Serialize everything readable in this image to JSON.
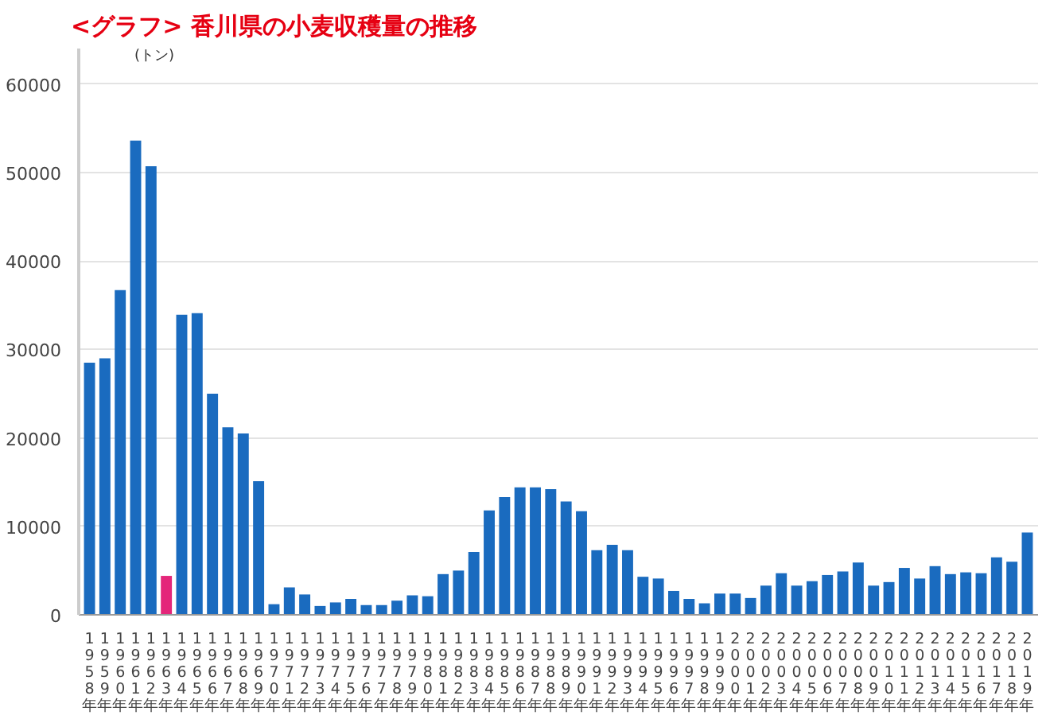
{
  "chart_data": {
    "type": "bar",
    "title": "<グラフ> 香川県の小麦収穫量の推移",
    "annotations": [
      "(トン)"
    ],
    "categories": [
      "1958年",
      "1959年",
      "1960年",
      "1961年",
      "1962年",
      "1963年",
      "1964年",
      "1965年",
      "1966年",
      "1967年",
      "1968年",
      "1969年",
      "1970年",
      "1971年",
      "1972年",
      "1973年",
      "1974年",
      "1975年",
      "1976年",
      "1977年",
      "1978年",
      "1979年",
      "1980年",
      "1981年",
      "1982年",
      "1983年",
      "1984年",
      "1985年",
      "1986年",
      "1987年",
      "1988年",
      "1989年",
      "1990年",
      "1991年",
      "1992年",
      "1993年",
      "1994年",
      "1995年",
      "1996年",
      "1997年",
      "1998年",
      "1999年",
      "2000年",
      "2001年",
      "2002年",
      "2003年",
      "2004年",
      "2005年",
      "2006年",
      "2007年",
      "2008年",
      "2009年",
      "2010年",
      "2011年",
      "2012年",
      "2013年",
      "2014年",
      "2015年",
      "2016年",
      "2017年",
      "2018年",
      "2019年"
    ],
    "values": [
      28500,
      29000,
      36700,
      53600,
      50700,
      4400,
      33900,
      34100,
      25000,
      21200,
      20500,
      15100,
      1200,
      3100,
      2300,
      1000,
      1400,
      1800,
      1100,
      1100,
      1600,
      2200,
      2100,
      4600,
      5000,
      7100,
      11800,
      13300,
      14400,
      14400,
      14200,
      12800,
      11700,
      7300,
      7900,
      7300,
      4300,
      4100,
      2700,
      1800,
      1300,
      2400,
      2400,
      1900,
      3300,
      4700,
      3300,
      3800,
      4500,
      4900,
      5900,
      3300,
      3700,
      5300,
      4100,
      5500,
      4600,
      4800,
      4700,
      6500,
      6000,
      9300
    ],
    "colors": [
      "#1a6bbf",
      "#1a6bbf",
      "#1a6bbf",
      "#1a6bbf",
      "#1a6bbf",
      "#e4267a",
      "#1a6bbf",
      "#1a6bbf",
      "#1a6bbf",
      "#1a6bbf",
      "#1a6bbf",
      "#1a6bbf",
      "#1a6bbf",
      "#1a6bbf",
      "#1a6bbf",
      "#1a6bbf",
      "#1a6bbf",
      "#1a6bbf",
      "#1a6bbf",
      "#1a6bbf",
      "#1a6bbf",
      "#1a6bbf",
      "#1a6bbf",
      "#1a6bbf",
      "#1a6bbf",
      "#1a6bbf",
      "#1a6bbf",
      "#1a6bbf",
      "#1a6bbf",
      "#1a6bbf",
      "#1a6bbf",
      "#1a6bbf",
      "#1a6bbf",
      "#1a6bbf",
      "#1a6bbf",
      "#1a6bbf",
      "#1a6bbf",
      "#1a6bbf",
      "#1a6bbf",
      "#1a6bbf",
      "#1a6bbf",
      "#1a6bbf",
      "#1a6bbf",
      "#1a6bbf",
      "#1a6bbf",
      "#1a6bbf",
      "#1a6bbf",
      "#1a6bbf",
      "#1a6bbf",
      "#1a6bbf",
      "#1a6bbf",
      "#1a6bbf",
      "#1a6bbf",
      "#1a6bbf",
      "#1a6bbf",
      "#1a6bbf",
      "#1a6bbf",
      "#1a6bbf",
      "#1a6bbf",
      "#1a6bbf",
      "#1a6bbf",
      "#1a6bbf"
    ],
    "ylim": [
      0,
      64000
    ],
    "yticks": [
      0,
      10000,
      20000,
      30000,
      40000,
      50000,
      60000
    ],
    "grid": "y"
  }
}
